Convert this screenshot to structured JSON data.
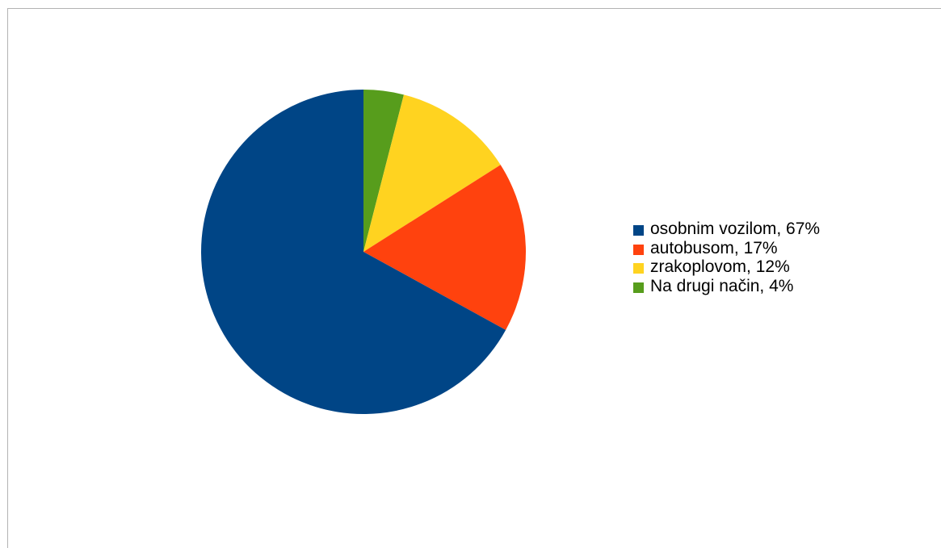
{
  "chart_data": {
    "type": "pie",
    "title": "",
    "slices": [
      {
        "label": "osobnim vozilom, 67%",
        "value": 67,
        "color": "#004586"
      },
      {
        "label": "autobusom, 17%",
        "value": 17,
        "color": "#ff420e"
      },
      {
        "label": "zrakoplovom, 12%",
        "value": 12,
        "color": "#ffd320"
      },
      {
        "label": "Na drugi način, 4%",
        "value": 4,
        "color": "#579d1c"
      }
    ],
    "legend_position": "right",
    "start_angle_deg": 0,
    "direction": "clockwise"
  }
}
